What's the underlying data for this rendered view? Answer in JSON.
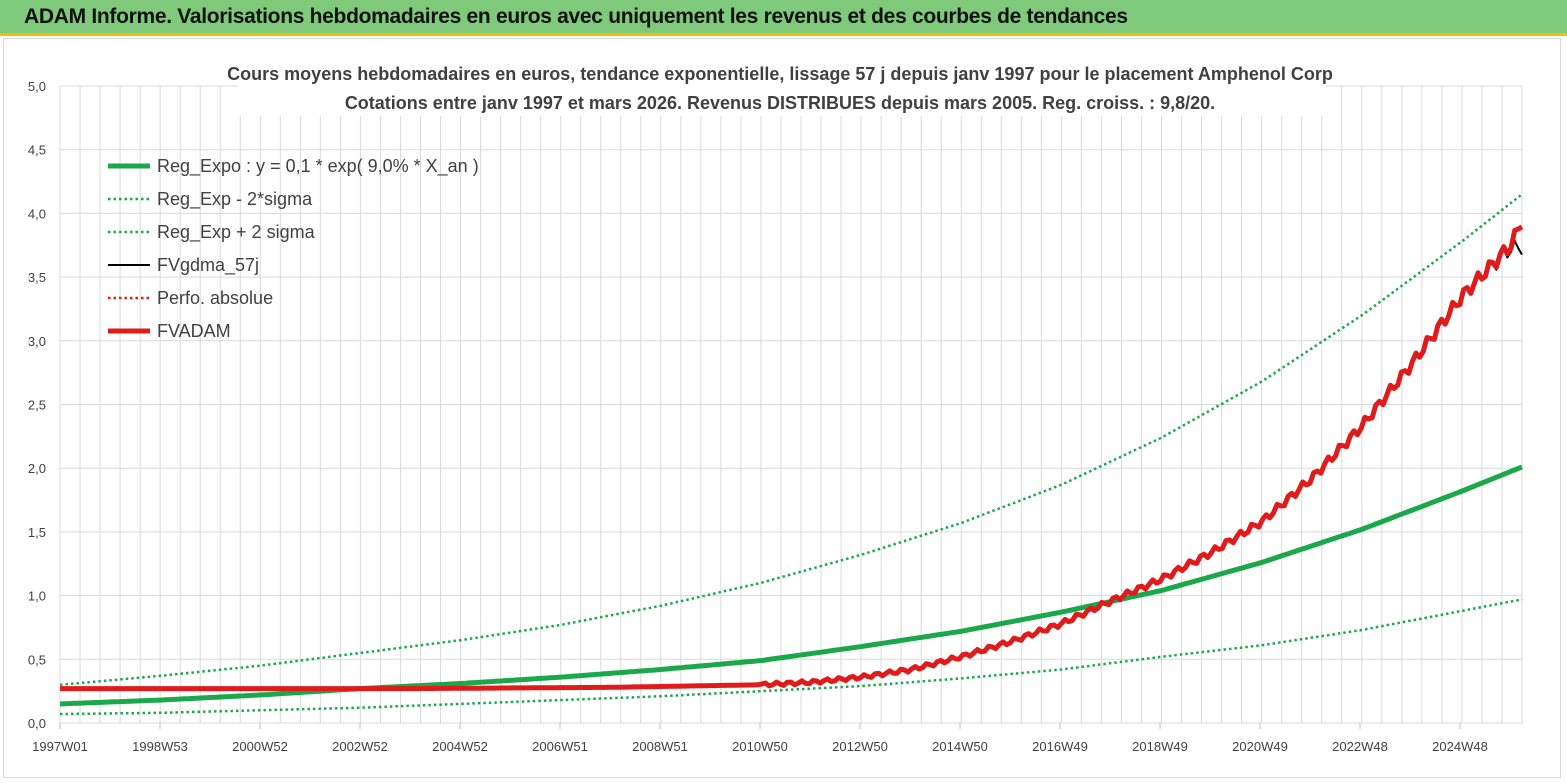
{
  "header": {
    "title": "ADAM Informe. Valorisations hebdomadaires en euros avec uniquement les revenus et des courbes de tendances",
    "background_color": "#7fc97a",
    "accent_color": "#f2c200"
  },
  "chart_data": {
    "type": "line",
    "title": [
      "Cours moyens hebdomadaires en euros, tendance exponentielle, lissage 57 j depuis janv 1997 pour le placement Amphenol Corp",
      "Cotations entre janv 1997 et mars 2026. Revenus DISTRIBUES depuis mars 2005. Reg. croiss. : 9,8/20."
    ],
    "x_tick_labels": [
      "1997W01",
      "1998W53",
      "2000W52",
      "2002W52",
      "2004W52",
      "2006W51",
      "2008W51",
      "2010W50",
      "2012W50",
      "2014W50",
      "2016W49",
      "2018W49",
      "2020W49",
      "2022W48",
      "2024W48"
    ],
    "y_tick_labels": [
      "0,0",
      "0,5",
      "1,0",
      "1,5",
      "2,0",
      "2,5",
      "3,0",
      "3,5",
      "4,0",
      "4,5",
      "5,0"
    ],
    "ylim": [
      0,
      5
    ],
    "xlim": [
      1997.0,
      2026.2
    ],
    "grid": true,
    "legend_position": "top-left",
    "series": [
      {
        "name": "Reg_Expo : y = 0,1 * exp( 9,0% *  X_an )",
        "color": "#1aa84b",
        "style": "solid-thick",
        "x": [
          1997,
          1999,
          2001,
          2003,
          2005,
          2007,
          2009,
          2011,
          2013,
          2015,
          2017,
          2019,
          2021,
          2023,
          2025,
          2026.2
        ],
        "y": [
          0.15,
          0.18,
          0.22,
          0.27,
          0.31,
          0.36,
          0.42,
          0.49,
          0.6,
          0.72,
          0.87,
          1.04,
          1.26,
          1.52,
          1.82,
          2.01
        ]
      },
      {
        "name": "Reg_Exp - 2*sigma",
        "color": "#1aa84b",
        "style": "dotted",
        "x": [
          1997,
          1999,
          2001,
          2003,
          2005,
          2007,
          2009,
          2011,
          2013,
          2015,
          2017,
          2019,
          2021,
          2023,
          2025,
          2026.2
        ],
        "y": [
          0.07,
          0.08,
          0.1,
          0.12,
          0.15,
          0.18,
          0.21,
          0.25,
          0.29,
          0.35,
          0.42,
          0.52,
          0.61,
          0.73,
          0.88,
          0.97
        ]
      },
      {
        "name": "Reg_Exp + 2 sigma",
        "color": "#1aa84b",
        "style": "dotted",
        "x": [
          1997,
          1999,
          2001,
          2003,
          2005,
          2007,
          2009,
          2011,
          2013,
          2015,
          2017,
          2019,
          2021,
          2023,
          2025,
          2026.2
        ],
        "y": [
          0.3,
          0.37,
          0.45,
          0.55,
          0.65,
          0.77,
          0.92,
          1.1,
          1.32,
          1.57,
          1.87,
          2.24,
          2.68,
          3.2,
          3.78,
          4.15
        ]
      },
      {
        "name": "FVgdma_57j",
        "color": "#000000",
        "style": "solid",
        "x": [
          1997,
          2000,
          2004,
          2008,
          2011,
          2012,
          2013,
          2014,
          2015,
          2016,
          2017,
          2018,
          2019,
          2020,
          2021,
          2022,
          2023,
          2024,
          2025,
          2026,
          2026.2
        ],
        "y": [
          0.27,
          0.27,
          0.27,
          0.28,
          0.3,
          0.32,
          0.36,
          0.42,
          0.52,
          0.64,
          0.78,
          0.96,
          1.13,
          1.34,
          1.58,
          1.92,
          2.33,
          2.82,
          3.35,
          3.73,
          3.73
        ]
      },
      {
        "name": "Perfo. absolue",
        "color": "#e01b1b",
        "style": "dotted",
        "x": [
          1997,
          2000,
          2004,
          2008,
          2011,
          2012,
          2013,
          2014,
          2015,
          2016,
          2017,
          2018,
          2019,
          2020,
          2021,
          2022,
          2023,
          2024,
          2025,
          2026,
          2026.2
        ],
        "y": [
          0.27,
          0.27,
          0.27,
          0.28,
          0.3,
          0.32,
          0.36,
          0.42,
          0.52,
          0.64,
          0.78,
          0.96,
          1.13,
          1.34,
          1.58,
          1.92,
          2.33,
          2.82,
          3.35,
          3.76,
          3.95
        ]
      },
      {
        "name": "FVADAM",
        "color": "#e01b1b",
        "style": "solid-thick",
        "x": [
          1997,
          2000,
          2004,
          2008,
          2011,
          2012,
          2013,
          2014,
          2015,
          2016,
          2017,
          2018,
          2019,
          2020,
          2021,
          2022,
          2023,
          2024,
          2025,
          2026,
          2026.2
        ],
        "y": [
          0.27,
          0.27,
          0.27,
          0.28,
          0.3,
          0.32,
          0.36,
          0.42,
          0.52,
          0.64,
          0.78,
          0.96,
          1.13,
          1.34,
          1.58,
          1.92,
          2.33,
          2.82,
          3.35,
          3.76,
          3.95
        ]
      }
    ]
  }
}
